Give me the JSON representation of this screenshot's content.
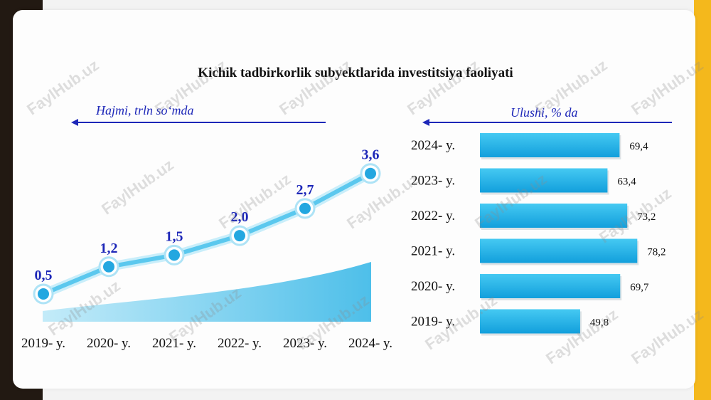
{
  "title": "Kichik tadbirkorlik subyektlarida investitsiya faoliyati",
  "left_label": "Hajmi, trln so‘mda",
  "right_label": "Ulushi, % da",
  "watermark": "FaylHub.uz",
  "colors": {
    "line": "#5bc8ee",
    "marker": "#23a7e0",
    "bar": "#1fb6ea",
    "value_text": "#1d27b8",
    "arrow": "#1d27b8"
  },
  "chart_data": [
    {
      "type": "line",
      "categories": [
        "2019- y.",
        "2020- y.",
        "2021- y.",
        "2022- y.",
        "2023- y.",
        "2024- y."
      ],
      "values": [
        0.5,
        1.2,
        1.5,
        2.0,
        2.7,
        3.6
      ],
      "value_labels": [
        "0,5",
        "1,2",
        "1,5",
        "2,0",
        "2,7",
        "3,6"
      ],
      "ylabel": "Hajmi, trln so‘mda",
      "ylim": [
        0,
        4
      ]
    },
    {
      "type": "bar",
      "orientation": "horizontal",
      "categories": [
        "2024- y.",
        "2023- y.",
        "2022- y.",
        "2021- y.",
        "2020- y.",
        "2019- y."
      ],
      "values": [
        69.4,
        63.4,
        73.2,
        78.2,
        69.7,
        49.8
      ],
      "value_labels": [
        "69,4",
        "63,4",
        "73,2",
        "78,2",
        "69,7",
        "49,8"
      ],
      "xlabel": "Ulushi, % da",
      "xlim": [
        0,
        100
      ]
    }
  ]
}
